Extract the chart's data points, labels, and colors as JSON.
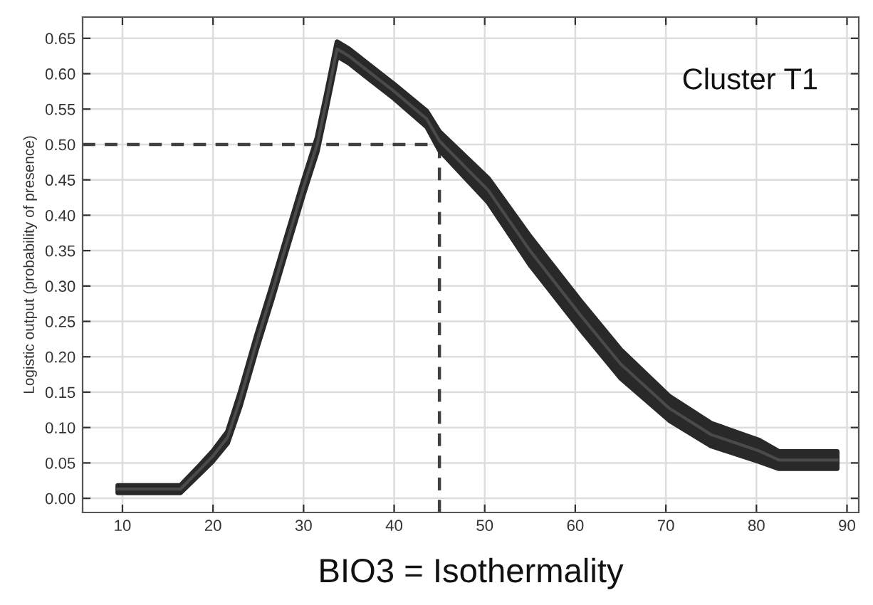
{
  "chart_data": {
    "type": "line",
    "xlabel": "BIO3 = Isothermality",
    "ylabel": "Logistic output (probability of presence)",
    "annotations": [
      "Cluster T1"
    ],
    "series": [
      {
        "color": "#4a4a4a",
        "x": [
          9.5,
          16.4,
          18.5,
          20,
          21.6,
          23,
          24.8,
          26.5,
          28,
          30,
          31.5,
          32.5,
          33.7,
          35,
          40,
          43.6,
          45,
          50.4,
          55,
          60.5,
          65,
          70.4,
          75,
          80.3,
          82.5,
          88.9
        ],
        "values": [
          0.013,
          0.013,
          0.04,
          0.06,
          0.086,
          0.14,
          0.22,
          0.29,
          0.355,
          0.44,
          0.5,
          0.56,
          0.635,
          0.625,
          0.575,
          0.536,
          0.505,
          0.435,
          0.35,
          0.26,
          0.19,
          0.127,
          0.09,
          0.067,
          0.054,
          0.054
        ],
        "lower": [
          0.008,
          0.008,
          0.034,
          0.053,
          0.078,
          0.13,
          0.21,
          0.28,
          0.345,
          0.43,
          0.49,
          0.55,
          0.625,
          0.615,
          0.565,
          0.525,
          0.492,
          0.418,
          0.33,
          0.24,
          0.17,
          0.11,
          0.074,
          0.052,
          0.042,
          0.042
        ],
        "upper": [
          0.018,
          0.018,
          0.046,
          0.067,
          0.094,
          0.15,
          0.23,
          0.3,
          0.365,
          0.45,
          0.51,
          0.57,
          0.645,
          0.635,
          0.585,
          0.547,
          0.518,
          0.452,
          0.37,
          0.28,
          0.21,
          0.144,
          0.106,
          0.082,
          0.066,
          0.066
        ]
      }
    ],
    "xlim": [
      5.6,
      91.3
    ],
    "ylim": [
      -0.02,
      0.68
    ],
    "xticks": [
      10,
      20,
      30,
      40,
      50,
      60,
      70,
      80,
      90
    ],
    "yticks": [
      {
        "value": 0,
        "label": "0.00"
      },
      {
        "value": 0.05,
        "label": "0.05"
      },
      {
        "value": 0.1,
        "label": "0.10"
      },
      {
        "value": 0.15,
        "label": "0.15"
      },
      {
        "value": 0.2,
        "label": "0.20"
      },
      {
        "value": 0.25,
        "label": "0.25"
      },
      {
        "value": 0.3,
        "label": "0.30"
      },
      {
        "value": 0.35,
        "label": "0.35"
      },
      {
        "value": 0.4,
        "label": "0.40"
      },
      {
        "value": 0.45,
        "label": "0.45"
      },
      {
        "value": 0.5,
        "label": "0.50"
      },
      {
        "value": 0.55,
        "label": "0.55"
      },
      {
        "value": 0.6,
        "label": "0.60"
      },
      {
        "value": 0.65,
        "label": "0.65"
      }
    ],
    "ref_lines": [
      {
        "axis": "y",
        "value": 0.5,
        "color": "#404040",
        "line_style": "dashed"
      },
      {
        "axis": "x",
        "value": 45,
        "color": "#404040",
        "line_style": "dashed"
      }
    ],
    "grid": true
  }
}
